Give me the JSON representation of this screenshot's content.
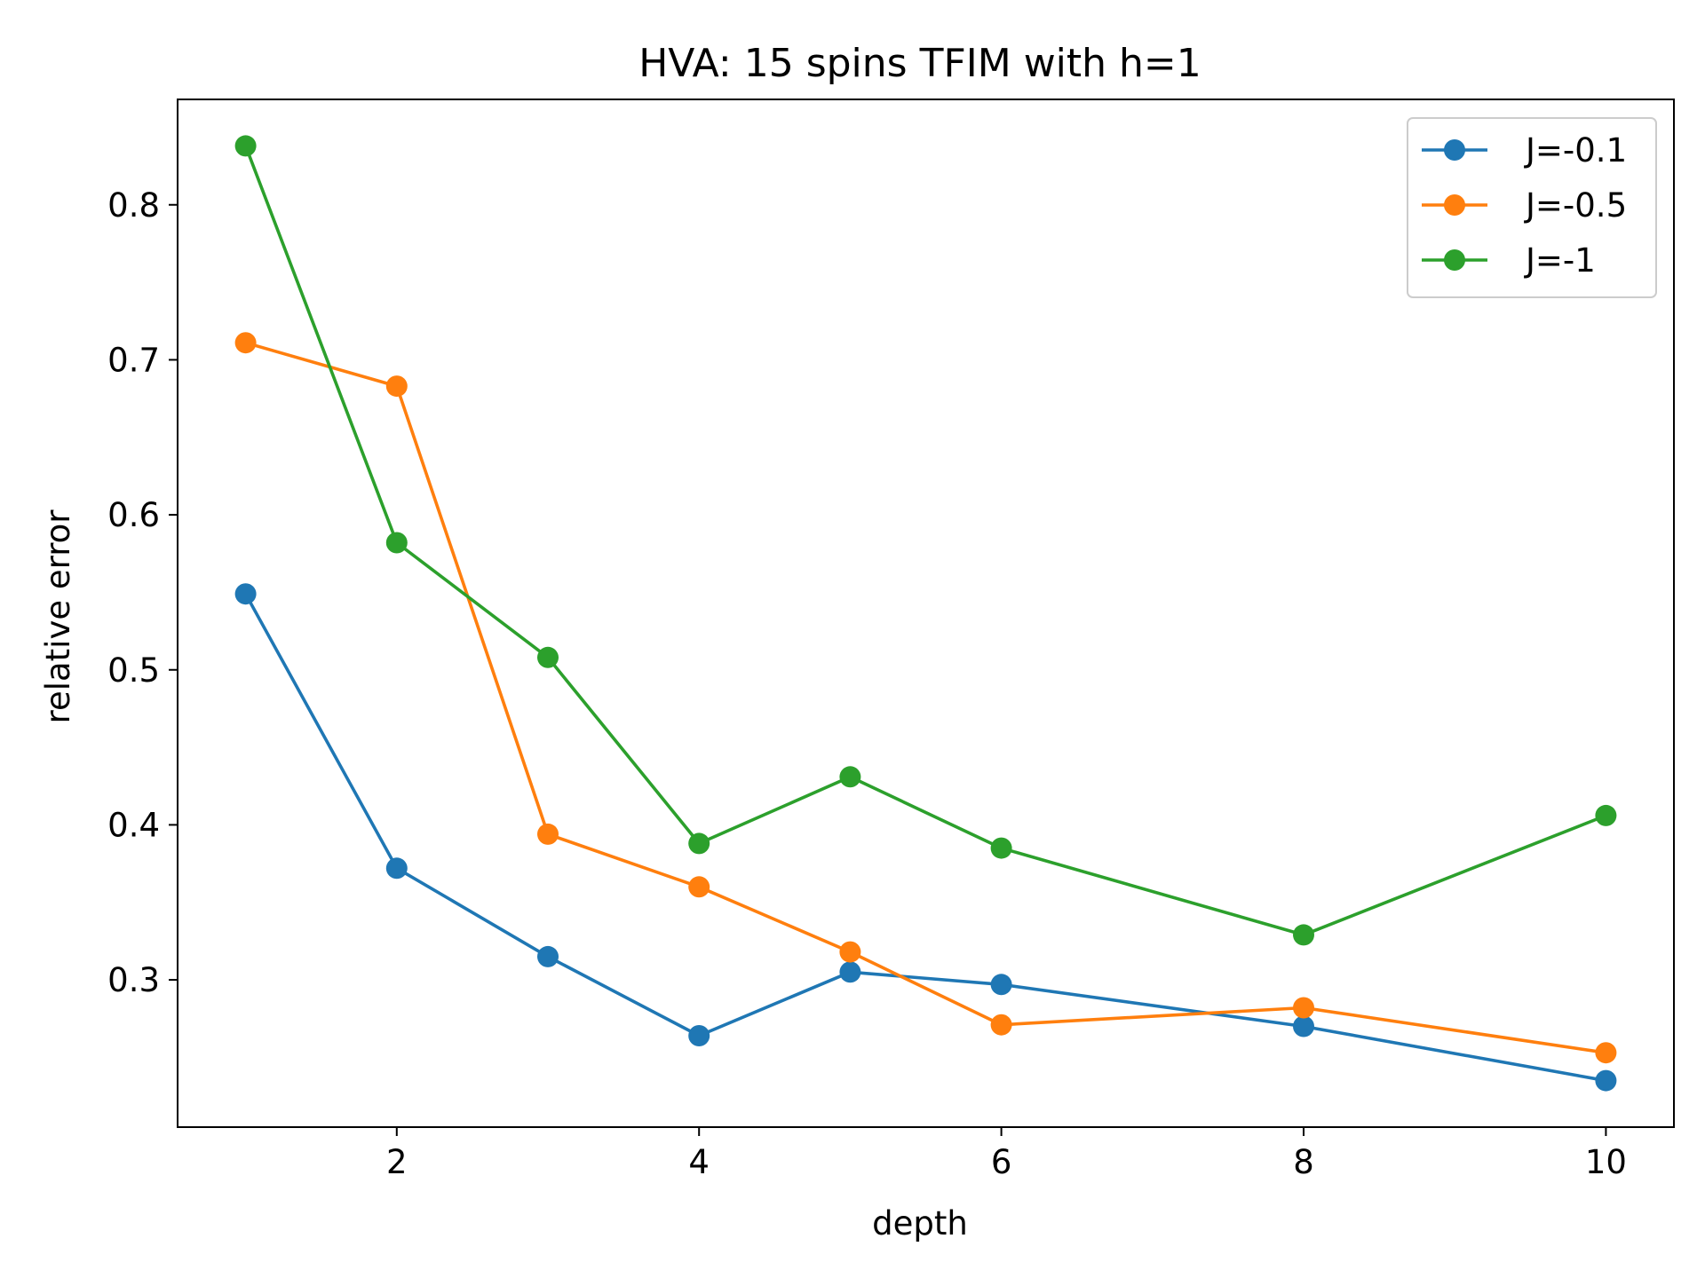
{
  "chart_data": {
    "type": "line",
    "title": "HVA: 15 spins TFIM with h=1",
    "xlabel": "depth",
    "ylabel": "relative error",
    "x": [
      1,
      2,
      3,
      4,
      5,
      6,
      8,
      10
    ],
    "xticks": [
      2,
      4,
      6,
      8,
      10
    ],
    "xtick_labels": [
      "2",
      "4",
      "6",
      "8",
      "10"
    ],
    "yticks": [
      0.3,
      0.4,
      0.5,
      0.6,
      0.7,
      0.8
    ],
    "ytick_labels": [
      "0.3",
      "0.4",
      "0.5",
      "0.6",
      "0.7",
      "0.8"
    ],
    "xlim": [
      0.55,
      10.45
    ],
    "ylim": [
      0.205,
      0.868
    ],
    "grid": false,
    "legend_position": "top-right",
    "series": [
      {
        "name": "J=-0.1",
        "color": "#1f77b4",
        "values": [
          0.549,
          0.372,
          0.315,
          0.264,
          0.305,
          0.297,
          0.27,
          0.235
        ]
      },
      {
        "name": "J=-0.5",
        "color": "#ff7f0e",
        "values": [
          0.711,
          0.683,
          0.394,
          0.36,
          0.318,
          0.271,
          0.282,
          0.253
        ]
      },
      {
        "name": "J=-1",
        "color": "#2ca02c",
        "values": [
          0.838,
          0.582,
          0.508,
          0.388,
          0.431,
          0.385,
          0.329,
          0.406
        ]
      }
    ]
  }
}
